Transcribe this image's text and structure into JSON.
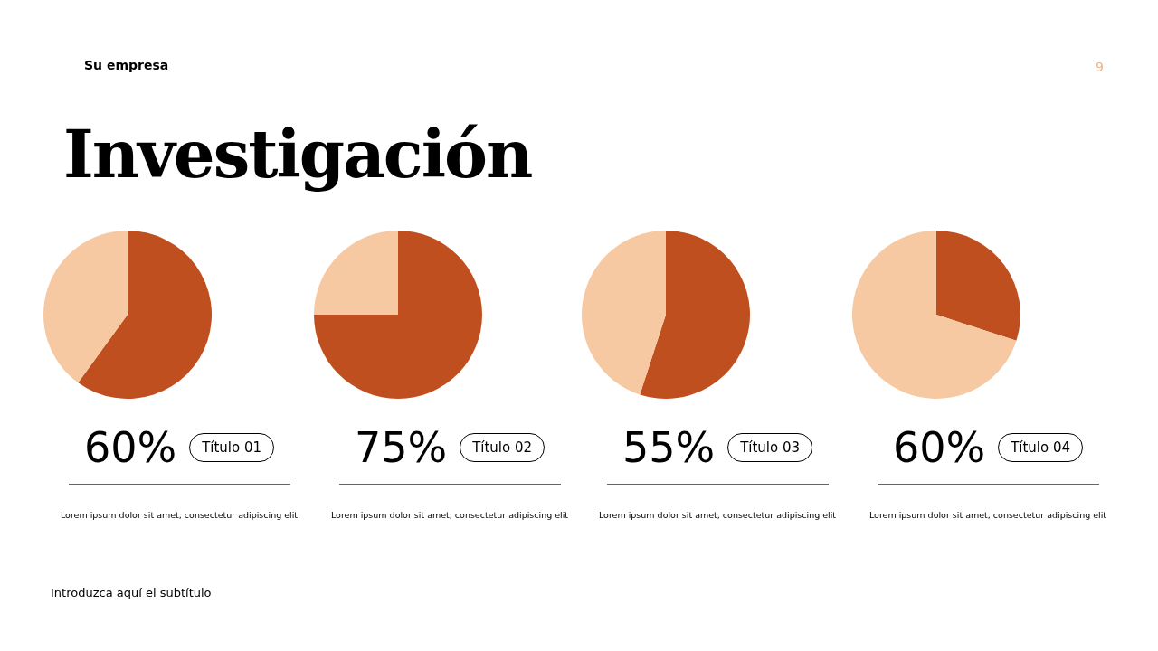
{
  "chart_data": [
    {
      "type": "pie",
      "title": "Título 01",
      "categories": [
        null,
        null
      ],
      "values": [
        60,
        40
      ],
      "colors": [
        "#bf4f1f",
        "#f6c9a3"
      ],
      "annotations": [
        "60%",
        "Lorem ipsum dolor sit amet, consectetur adipiscing elit"
      ]
    },
    {
      "type": "pie",
      "title": "Título 02",
      "categories": [
        null,
        null
      ],
      "values": [
        75,
        25
      ],
      "colors": [
        "#bf4f1f",
        "#f6c9a3"
      ],
      "annotations": [
        "75%",
        "Lorem ipsum dolor sit amet, consectetur adipiscing elit"
      ]
    },
    {
      "type": "pie",
      "title": "Título 03",
      "categories": [
        null,
        null
      ],
      "values": [
        55,
        45
      ],
      "colors": [
        "#bf4f1f",
        "#f6c9a3"
      ],
      "annotations": [
        "55%",
        "Lorem ipsum dolor sit amet, consectetur adipiscing elit"
      ]
    },
    {
      "type": "pie",
      "title": "Título 04",
      "categories": [
        null,
        null
      ],
      "values": [
        30,
        70
      ],
      "colors": [
        "#bf4f1f",
        "#f6c9a3"
      ],
      "annotations": [
        "60%",
        "Lorem ipsum dolor sit amet, consectetur adipiscing elit"
      ]
    },
    {
      "type": "other",
      "title": "Investigación",
      "annotations": [
        "Su empresa",
        "9",
        "Introduzca aquí el subtítulo"
      ]
    }
  ]
}
